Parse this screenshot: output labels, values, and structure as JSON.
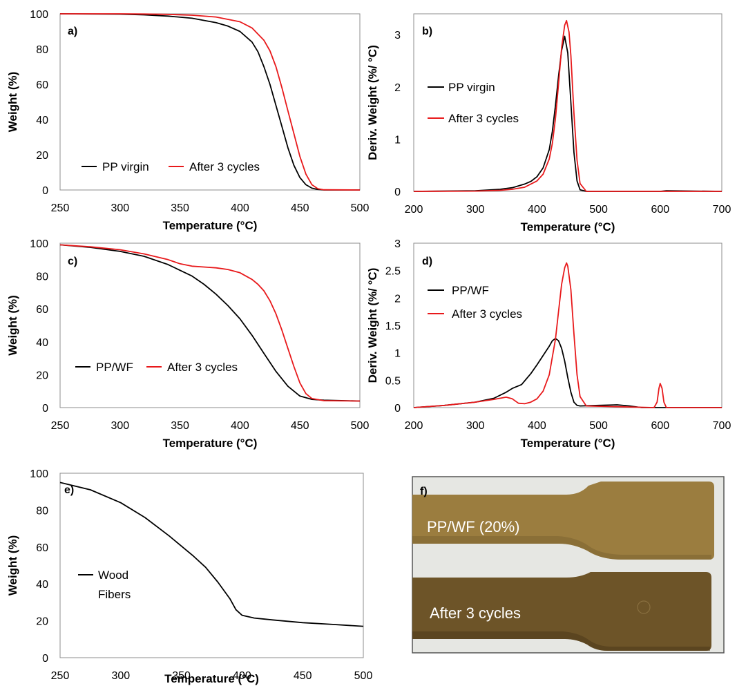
{
  "colors": {
    "black_series": "#000000",
    "red_series": "#e8191b",
    "frame": "#8c8c8c"
  },
  "chart_data": [
    {
      "panel": "a)",
      "type": "line",
      "xlabel": "Temperature (°C)",
      "ylabel": "Weight (%)",
      "xlim": [
        250,
        500
      ],
      "ylim": [
        0,
        100
      ],
      "xticks": [
        250,
        300,
        350,
        400,
        450,
        500
      ],
      "yticks": [
        0,
        20,
        40,
        60,
        80,
        100
      ],
      "legend_position": "bottom-left",
      "series": [
        {
          "name": "PP virgin",
          "color": "#000000",
          "x": [
            250,
            300,
            320,
            340,
            360,
            380,
            390,
            400,
            410,
            415,
            420,
            425,
            430,
            435,
            440,
            445,
            450,
            455,
            460,
            465,
            470,
            500
          ],
          "y": [
            100,
            99.8,
            99.4,
            98.7,
            97.5,
            95,
            93,
            90,
            84,
            78.5,
            70,
            60,
            48,
            36,
            24,
            14,
            7,
            3,
            1,
            0.3,
            0,
            0
          ]
        },
        {
          "name": "After 3 cycles",
          "color": "#e8191b",
          "x": [
            250,
            300,
            320,
            340,
            360,
            380,
            400,
            410,
            420,
            425,
            430,
            435,
            440,
            445,
            450,
            455,
            460,
            465,
            470,
            500
          ],
          "y": [
            100,
            100,
            99.9,
            99.7,
            99.2,
            98.2,
            95.5,
            92,
            85,
            79,
            70,
            58,
            45,
            32,
            19,
            9,
            3,
            0.7,
            0.1,
            0
          ]
        }
      ]
    },
    {
      "panel": "b)",
      "type": "line",
      "xlabel": "Temperature (°C)",
      "ylabel": "Deriv. Weight (%/ °C)",
      "xlim": [
        200,
        700
      ],
      "ylim": [
        0,
        3.4
      ],
      "xticks": [
        200,
        300,
        400,
        500,
        600,
        700
      ],
      "yticks": [
        0,
        1,
        2,
        3
      ],
      "legend_position": "left",
      "series": [
        {
          "name": "PP virgin",
          "color": "#000000",
          "x": [
            200,
            300,
            340,
            360,
            380,
            390,
            400,
            410,
            420,
            425,
            430,
            435,
            440,
            445,
            450,
            455,
            460,
            465,
            470,
            480,
            600,
            610,
            700
          ],
          "y": [
            0,
            0.01,
            0.04,
            0.07,
            0.14,
            0.19,
            0.28,
            0.45,
            0.8,
            1.15,
            1.65,
            2.2,
            2.7,
            2.97,
            2.65,
            1.7,
            0.75,
            0.2,
            0.03,
            0,
            0,
            0.01,
            0
          ]
        },
        {
          "name": "After 3 cycles",
          "color": "#e8191b",
          "x": [
            200,
            300,
            340,
            360,
            380,
            400,
            410,
            420,
            425,
            430,
            435,
            440,
            445,
            448,
            452,
            455,
            460,
            465,
            470,
            480,
            700
          ],
          "y": [
            0,
            0.005,
            0.02,
            0.04,
            0.08,
            0.2,
            0.33,
            0.62,
            0.92,
            1.4,
            2.05,
            2.75,
            3.18,
            3.27,
            3.05,
            2.6,
            1.5,
            0.6,
            0.15,
            0,
            0
          ]
        }
      ]
    },
    {
      "panel": "c)",
      "type": "line",
      "xlabel": "Temperature (°C)",
      "ylabel": "Weight (%)",
      "xlim": [
        250,
        500
      ],
      "ylim": [
        0,
        100
      ],
      "xticks": [
        250,
        300,
        350,
        400,
        450,
        500
      ],
      "yticks": [
        0,
        20,
        40,
        60,
        80,
        100
      ],
      "legend_position": "bottom-left",
      "series": [
        {
          "name": "PP/WF",
          "color": "#000000",
          "x": [
            250,
            275,
            300,
            320,
            340,
            360,
            370,
            380,
            390,
            400,
            410,
            420,
            430,
            440,
            450,
            460,
            470,
            500
          ],
          "y": [
            99,
            97.5,
            95,
            92,
            87,
            80,
            75,
            69,
            62,
            54,
            44,
            33,
            22,
            13,
            7,
            5,
            4.5,
            4
          ]
        },
        {
          "name": "After 3 cycles",
          "color": "#e8191b",
          "x": [
            250,
            275,
            300,
            320,
            340,
            350,
            360,
            370,
            380,
            390,
            400,
            410,
            415,
            420,
            425,
            430,
            435,
            440,
            445,
            450,
            455,
            460,
            470,
            500
          ],
          "y": [
            99,
            97.8,
            96,
            93.5,
            90,
            87.5,
            86,
            85.5,
            85,
            84,
            82,
            78,
            75,
            71,
            65,
            57,
            47,
            36,
            25,
            15,
            8.5,
            5.5,
            4.2,
            4
          ]
        }
      ]
    },
    {
      "panel": "d)",
      "type": "line",
      "xlabel": "Temperature (°C)",
      "ylabel": "Deriv. Weight (%/ °C)",
      "xlim": [
        200,
        700
      ],
      "ylim": [
        0,
        3
      ],
      "xticks": [
        200,
        300,
        400,
        500,
        600,
        700
      ],
      "yticks": [
        0,
        0.5,
        1,
        1.5,
        2,
        2.5,
        3
      ],
      "legend_position": "top-left",
      "series": [
        {
          "name": "PP/WF",
          "color": "#000000",
          "x": [
            200,
            250,
            300,
            330,
            350,
            360,
            375,
            390,
            400,
            410,
            420,
            425,
            430,
            435,
            440,
            445,
            450,
            455,
            460,
            465,
            470,
            500,
            530,
            550,
            570,
            700
          ],
          "y": [
            0,
            0.04,
            0.1,
            0.17,
            0.28,
            0.35,
            0.42,
            0.62,
            0.78,
            0.95,
            1.12,
            1.22,
            1.26,
            1.22,
            1.08,
            0.85,
            0.55,
            0.28,
            0.1,
            0.04,
            0.03,
            0.04,
            0.05,
            0.03,
            0,
            0
          ]
        },
        {
          "name": "After 3 cycles",
          "color": "#e8191b",
          "x": [
            200,
            250,
            300,
            330,
            350,
            360,
            370,
            380,
            390,
            400,
            410,
            420,
            430,
            435,
            440,
            445,
            448,
            450,
            455,
            460,
            465,
            470,
            480,
            590,
            595,
            598,
            600,
            603,
            606,
            610,
            700
          ],
          "y": [
            0,
            0.04,
            0.1,
            0.15,
            0.19,
            0.16,
            0.08,
            0.07,
            0.1,
            0.16,
            0.3,
            0.6,
            1.25,
            1.75,
            2.25,
            2.55,
            2.64,
            2.58,
            2.15,
            1.35,
            0.6,
            0.2,
            0.03,
            0,
            0.1,
            0.35,
            0.44,
            0.35,
            0.1,
            0,
            0
          ]
        }
      ]
    },
    {
      "panel": "e)",
      "type": "line",
      "xlabel": "Temperature (°C)",
      "ylabel": "Weight (%)",
      "xlim": [
        250,
        500
      ],
      "ylim": [
        0,
        100
      ],
      "xticks": [
        250,
        300,
        350,
        400,
        450,
        500
      ],
      "yticks": [
        0,
        20,
        40,
        60,
        80,
        100
      ],
      "legend_position": "left",
      "series": [
        {
          "name": "Wood Fibers",
          "legend_lines": [
            "Wood",
            "Fibers"
          ],
          "color": "#000000",
          "x": [
            250,
            275,
            300,
            320,
            340,
            360,
            370,
            380,
            390,
            395,
            400,
            410,
            425,
            450,
            475,
            500
          ],
          "y": [
            95,
            91,
            84,
            76,
            66,
            55,
            49,
            41,
            32,
            26,
            23,
            21.5,
            20.5,
            19,
            18,
            17
          ]
        }
      ]
    }
  ],
  "photo": {
    "panel": "f)",
    "labels": [
      "PP/WF (20%)",
      "After 3 cycles"
    ],
    "specimen_colors": [
      "#9b7d3f",
      "#6d5428"
    ],
    "background_color": "#e6e7e3"
  }
}
